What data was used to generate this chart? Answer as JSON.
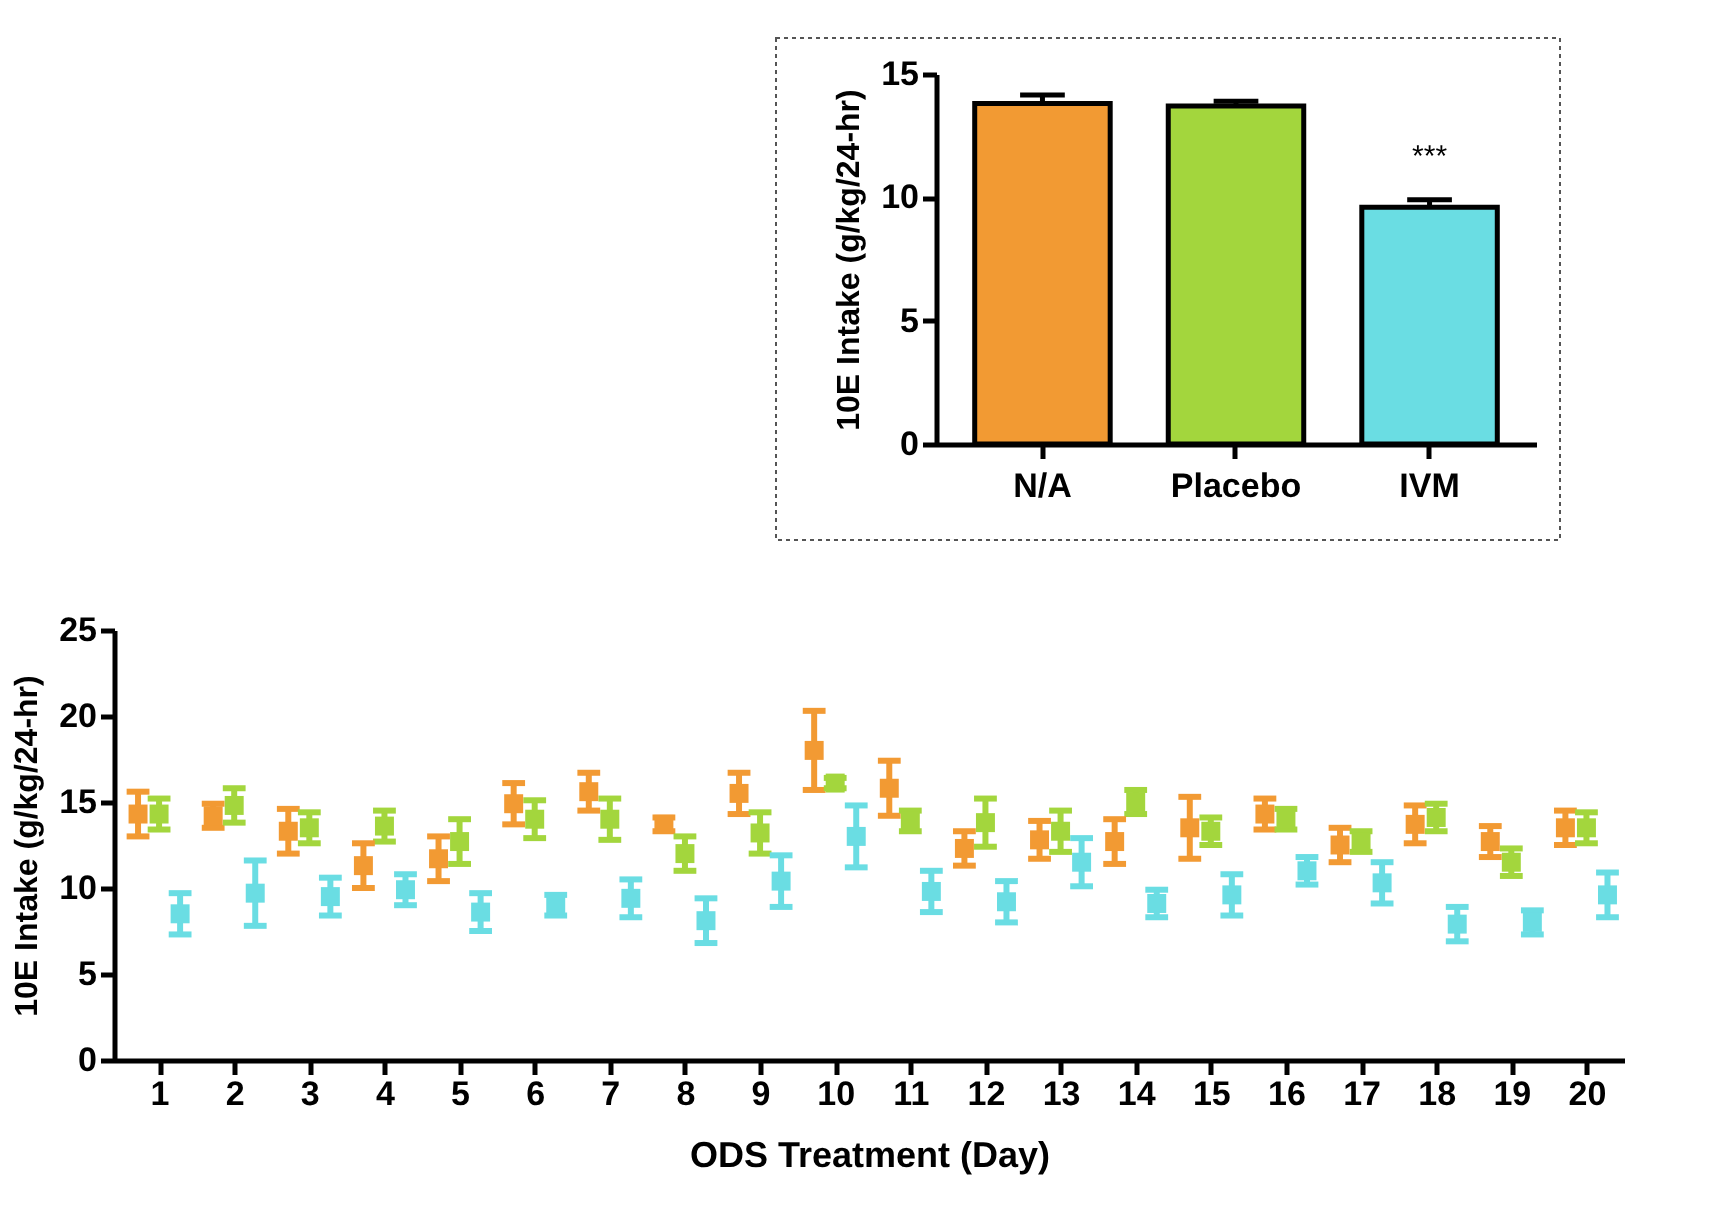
{
  "chart_data": [
    {
      "type": "bar",
      "ylabel": "10E Intake (g/kg/24-hr)",
      "categories": [
        "N/A",
        "Placebo",
        "IVM"
      ],
      "values": [
        13.8,
        13.7,
        9.6
      ],
      "colors": [
        "#f29a33",
        "#a3d63d",
        "#6adde3"
      ],
      "errors": [
        0.35,
        0.2,
        0.3
      ],
      "ylim": [
        0,
        15
      ],
      "yticks": [
        0,
        5,
        10,
        15
      ],
      "grid": false,
      "annotations": [
        "***"
      ]
    },
    {
      "type": "scatter",
      "xlabel": "ODS Treatment (Day)",
      "ylabel": "10E Intake (g/kg/24-hr)",
      "marker": "square",
      "grid": false,
      "xlim": [
        0.4,
        20.5
      ],
      "xticks": [
        1,
        2,
        3,
        4,
        5,
        6,
        7,
        8,
        9,
        10,
        11,
        12,
        13,
        14,
        15,
        16,
        17,
        18,
        19,
        20
      ],
      "ylim": [
        0,
        25
      ],
      "yticks": [
        0,
        5,
        10,
        15,
        20,
        25
      ],
      "series": [
        {
          "color": "#f29a33",
          "x": [
            0.72,
            1.72,
            2.72,
            3.72,
            4.72,
            5.72,
            6.72,
            7.72,
            8.72,
            9.72,
            10.72,
            11.72,
            12.72,
            13.72,
            14.72,
            15.72,
            16.72,
            17.72,
            18.72,
            19.72
          ],
          "values": [
            14.3,
            14.2,
            13.3,
            11.3,
            11.7,
            14.9,
            15.6,
            13.7,
            15.5,
            18.0,
            15.8,
            12.3,
            12.8,
            12.7,
            13.5,
            14.3,
            12.5,
            13.7,
            12.7,
            13.5
          ],
          "errors": [
            1.3,
            0.7,
            1.3,
            1.3,
            1.3,
            1.2,
            1.1,
            0.4,
            1.2,
            2.3,
            1.6,
            1.0,
            1.1,
            1.3,
            1.8,
            0.9,
            1.0,
            1.1,
            0.9,
            1.0
          ]
        },
        {
          "color": "#a3d63d",
          "x": [
            1,
            2,
            3,
            4,
            5,
            6,
            7,
            8,
            9,
            10,
            11,
            12,
            13,
            14,
            15,
            16,
            17,
            18,
            19,
            20
          ],
          "values": [
            14.3,
            14.8,
            13.5,
            13.6,
            12.7,
            14.0,
            14.0,
            12.0,
            13.2,
            16.1,
            13.9,
            13.8,
            13.3,
            15.0,
            13.3,
            14.0,
            12.7,
            14.1,
            11.5,
            13.5
          ],
          "errors": [
            0.9,
            1.0,
            0.9,
            0.9,
            1.3,
            1.1,
            1.2,
            1.0,
            1.2,
            0.3,
            0.6,
            1.4,
            1.2,
            0.7,
            0.8,
            0.6,
            0.6,
            0.8,
            0.8,
            0.9
          ]
        },
        {
          "color": "#6adde3",
          "x": [
            1.28,
            2.28,
            3.28,
            4.28,
            5.28,
            6.28,
            7.28,
            8.28,
            9.28,
            10.28,
            11.28,
            12.28,
            13.28,
            14.28,
            15.28,
            16.28,
            17.28,
            18.28,
            19.28,
            20.28
          ],
          "values": [
            8.5,
            9.7,
            9.5,
            9.9,
            8.6,
            9.0,
            9.4,
            8.1,
            10.4,
            13.0,
            9.8,
            9.2,
            11.5,
            9.1,
            9.6,
            11.0,
            10.3,
            7.9,
            8.0,
            9.6
          ],
          "errors": [
            1.2,
            1.9,
            1.1,
            0.9,
            1.1,
            0.6,
            1.1,
            1.3,
            1.5,
            1.8,
            1.2,
            1.2,
            1.4,
            0.8,
            1.2,
            0.8,
            1.2,
            1.0,
            0.7,
            1.3
          ]
        }
      ]
    }
  ]
}
